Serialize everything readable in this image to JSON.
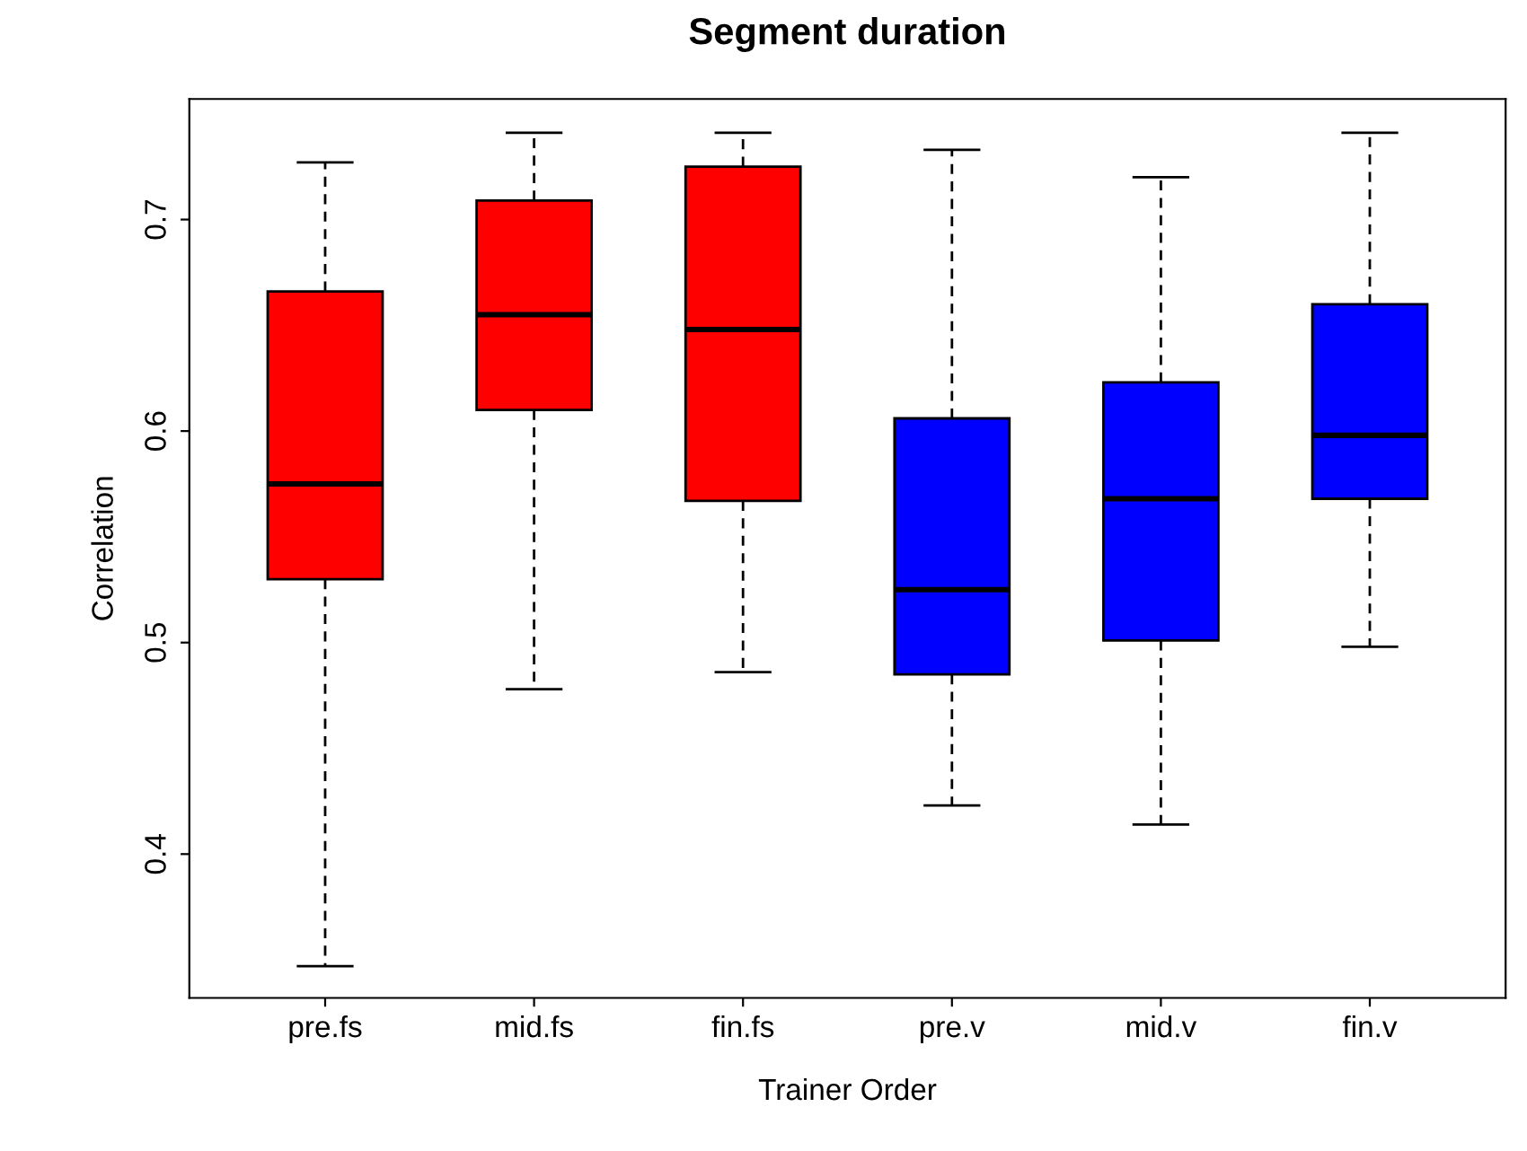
{
  "chart_data": {
    "type": "box",
    "title": "Segment duration",
    "xlabel": "Trainer Order",
    "ylabel": "Correlation",
    "categories": [
      "pre.fs",
      "mid.fs",
      "fin.fs",
      "pre.v",
      "mid.v",
      "fin.v"
    ],
    "colors": [
      "#ff0000",
      "#ff0000",
      "#ff0000",
      "#0000ff",
      "#0000ff",
      "#0000ff"
    ],
    "boxes": [
      {
        "low": 0.347,
        "q1": 0.53,
        "median": 0.575,
        "q3": 0.666,
        "high": 0.727
      },
      {
        "low": 0.478,
        "q1": 0.61,
        "median": 0.655,
        "q3": 0.709,
        "high": 0.741
      },
      {
        "low": 0.486,
        "q1": 0.567,
        "median": 0.648,
        "q3": 0.725,
        "high": 0.741
      },
      {
        "low": 0.423,
        "q1": 0.485,
        "median": 0.525,
        "q3": 0.606,
        "high": 0.733
      },
      {
        "low": 0.414,
        "q1": 0.501,
        "median": 0.568,
        "q3": 0.623,
        "high": 0.72
      },
      {
        "low": 0.498,
        "q1": 0.568,
        "median": 0.598,
        "q3": 0.66,
        "high": 0.741
      }
    ],
    "ylim": [
      0.332,
      0.757
    ],
    "yticks": [
      0.4,
      0.5,
      0.6,
      0.7
    ],
    "grid": false,
    "legend": false
  }
}
